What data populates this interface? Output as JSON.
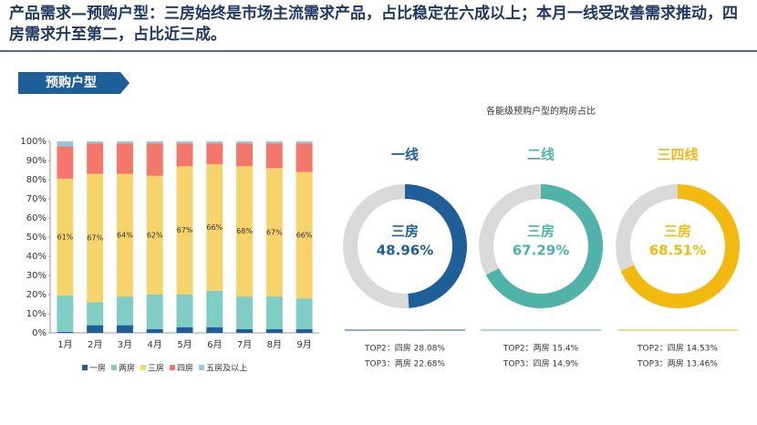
{
  "header": {
    "title": "产品需求—预购户型：三房始终是市场主流需求产品，占比稳定在六成以上；本月一线受改善需求推动，四房需求升至第二，占比近三成。",
    "tag": "预购户型"
  },
  "donut_section_title": "各能级预购户型的购房占比",
  "chart_data": [
    {
      "type": "stacked_bar",
      "categories": [
        "1月",
        "2月",
        "3月",
        "4月",
        "5月",
        "6月",
        "7月",
        "8月",
        "9月"
      ],
      "ylim": [
        0,
        100
      ],
      "yticks": [
        {
          "value": 0,
          "label": "0%"
        },
        {
          "value": 10,
          "label": "10%"
        },
        {
          "value": 20,
          "label": "20%"
        },
        {
          "value": 30,
          "label": "30%"
        },
        {
          "value": 40,
          "label": "40%"
        },
        {
          "value": 50,
          "label": "50%"
        },
        {
          "value": 60,
          "label": "60%"
        },
        {
          "value": 70,
          "label": "70%"
        },
        {
          "value": 80,
          "label": "80%"
        },
        {
          "value": 90,
          "label": "90%"
        },
        {
          "value": 100,
          "label": "100%"
        }
      ],
      "series": [
        {
          "name": "一房",
          "color": "#1f5f99",
          "values": [
            0.5,
            4,
            4,
            2,
            3,
            3,
            2,
            2,
            2
          ]
        },
        {
          "name": "两房",
          "color": "#7fcdc4",
          "values": [
            19,
            12,
            15,
            18,
            17,
            19,
            17,
            17,
            16
          ]
        },
        {
          "name": "三房",
          "color": "#f7d36b",
          "values": [
            61,
            67,
            64,
            62,
            67,
            66,
            68,
            67,
            66
          ],
          "value_labels": [
            "61%",
            "67%",
            "64%",
            "62%",
            "67%",
            "66%",
            "68%",
            "67%",
            "66%"
          ]
        },
        {
          "name": "四房",
          "color": "#f4776b",
          "values": [
            17,
            16,
            16,
            17,
            12,
            11,
            12,
            13,
            15
          ]
        },
        {
          "name": "五房及以上",
          "color": "#8ecae6",
          "values": [
            2.5,
            1,
            1,
            1,
            1,
            1,
            1,
            1,
            1
          ]
        }
      ]
    },
    {
      "type": "donut",
      "title": "一线",
      "center_label": "三房",
      "values": [
        48.96
      ],
      "value_labels": [
        "48.96%"
      ],
      "color": "#1f5f99",
      "notes": [
        "TOP2：四房  28.08%",
        "TOP3：两房  22.68%"
      ]
    },
    {
      "type": "donut",
      "title": "二线",
      "center_label": "三房",
      "values": [
        67.29
      ],
      "value_labels": [
        "67.29%"
      ],
      "color": "#4fb3a9",
      "notes": [
        "TOP2：两房  15.4%",
        "TOP3：四房  14.9%"
      ]
    },
    {
      "type": "donut",
      "title": "三四线",
      "center_label": "三房",
      "values": [
        68.51
      ],
      "value_labels": [
        "68.51%"
      ],
      "color": "#f2b90f",
      "notes": [
        "TOP2：四房  14.53%",
        "TOP3：两房  13.46%"
      ]
    }
  ]
}
